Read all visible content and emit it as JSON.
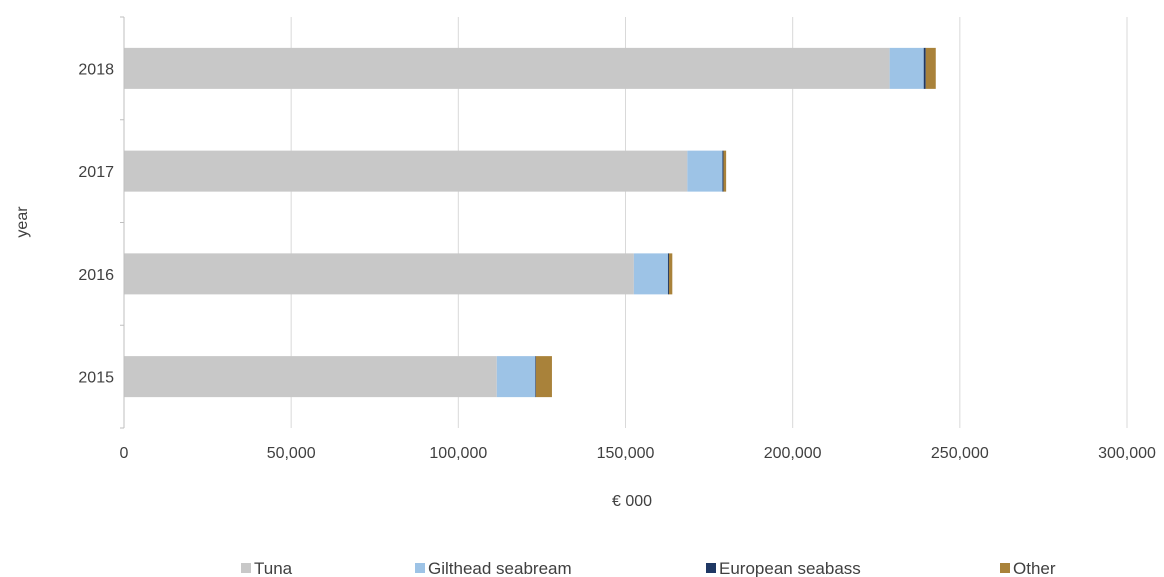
{
  "chart_data": {
    "type": "bar",
    "orientation": "horizontal",
    "stacked": true,
    "title": "",
    "xlabel": "€ 000",
    "ylabel": "year",
    "xlim": [
      0,
      300000
    ],
    "x_ticks": [
      0,
      50000,
      100000,
      150000,
      200000,
      250000,
      300000
    ],
    "x_tick_labels": [
      "0",
      "50,000",
      "100,000",
      "150,000",
      "200,000",
      "250,000",
      "300,000"
    ],
    "categories": [
      "2015",
      "2016",
      "2017",
      "2018"
    ],
    "series": [
      {
        "name": "Tuna",
        "color": "#c8c8c8",
        "values": [
          111500,
          152500,
          168500,
          229000
        ]
      },
      {
        "name": "Gilthead seabream",
        "color": "#9dc3e6",
        "values": [
          11500,
          10200,
          10500,
          10200
        ]
      },
      {
        "name": "European seabass",
        "color": "#1f3864",
        "values": [
          200,
          300,
          300,
          600
        ]
      },
      {
        "name": "Other",
        "color": "#a9823a",
        "values": [
          4800,
          1000,
          800,
          3000
        ]
      }
    ],
    "grid": "vertical",
    "legend_position": "bottom"
  }
}
